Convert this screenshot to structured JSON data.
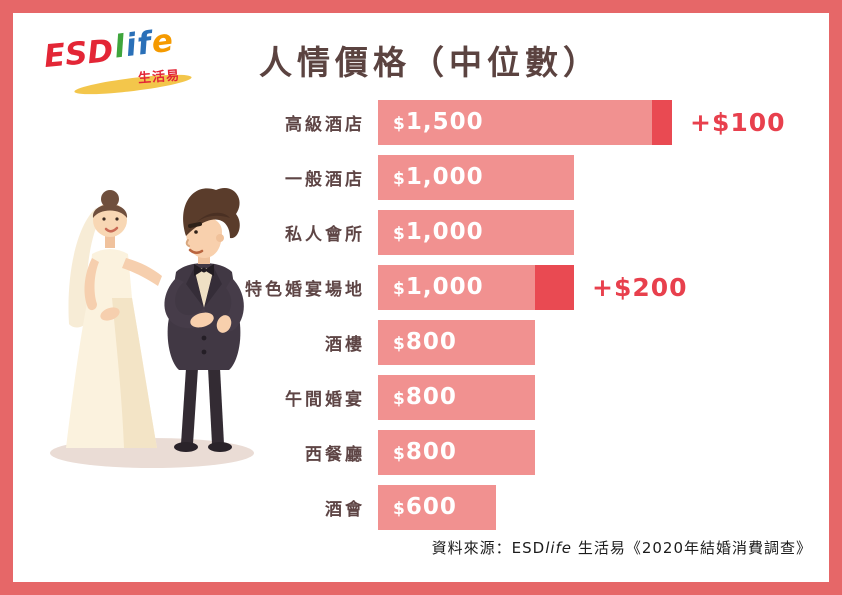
{
  "logo": {
    "esd": "ESD",
    "l": "l",
    "i": "i",
    "f": "f",
    "e": "e",
    "tagline": "生活易"
  },
  "title": "人情價格（中位數）",
  "chart_data": {
    "type": "bar",
    "orientation": "horizontal",
    "title": "人情價格（中位數）",
    "xlabel": "",
    "ylabel": "",
    "xlim": [
      0,
      1500
    ],
    "grid": false,
    "legend": null,
    "unit": "HK$",
    "categories": [
      "高級酒店",
      "一般酒店",
      "私人會所",
      "特色婚宴場地",
      "酒樓",
      "午間婚宴",
      "西餐廳",
      "酒會"
    ],
    "values": [
      1500,
      1000,
      1000,
      1000,
      800,
      800,
      800,
      600
    ],
    "value_labels": [
      "$1,500",
      "$1,000",
      "$1,000",
      "$1,000",
      "$800",
      "$800",
      "$800",
      "$600"
    ],
    "increases": [
      100,
      0,
      0,
      200,
      0,
      0,
      0,
      0
    ],
    "increase_labels": [
      "+$100",
      "",
      "",
      "+$200",
      "",
      "",
      "",
      ""
    ],
    "bar_color": "#f19190",
    "increase_color": "#e94a52",
    "annotation_color": "#e8404d",
    "label_color": "#5e4545"
  },
  "source": {
    "part1": "資料來源：ESD",
    "part2": "life",
    "part3": " 生活易《2020年結婚消費調查》"
  }
}
